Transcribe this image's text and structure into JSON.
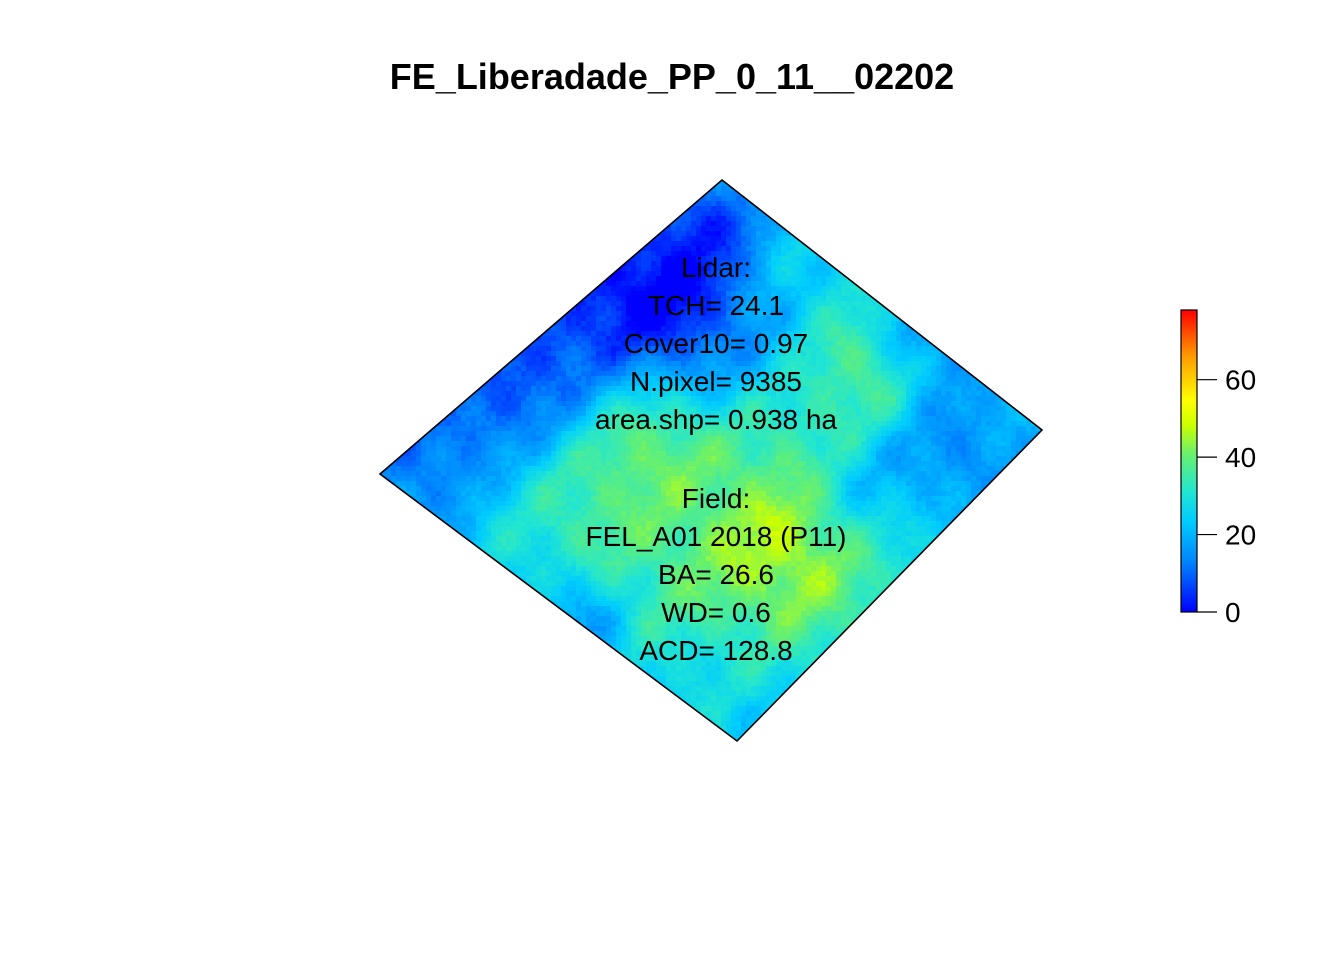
{
  "chart_data": {
    "type": "heatmap",
    "title": "FE_Liberadade_PP_0_11__02202",
    "xlabel": "",
    "ylabel": "",
    "grid": false,
    "legend": "right",
    "colorbar": {
      "ticks": [
        0,
        20,
        40,
        60
      ],
      "range": [
        0,
        78
      ],
      "colors": [
        "#0000ff",
        "#00bfff",
        "#2ee8c0",
        "#7fff00",
        "#ffff00",
        "#ff8000",
        "#ff0000"
      ]
    },
    "shape": "rotated-square",
    "value_summary": {
      "typical_range": [
        5,
        45
      ],
      "mean": 24.1
    },
    "annotations": {
      "lidar": [
        "Lidar:",
        "TCH= 24.1",
        "Cover10= 0.97",
        "N.pixel= 9385",
        "area.shp= 0.938 ha"
      ],
      "field": [
        "Field:",
        "FEL_A01 2018 (P11)",
        "BA= 26.6",
        "WD= 0.6",
        "ACD= 128.8"
      ]
    }
  }
}
